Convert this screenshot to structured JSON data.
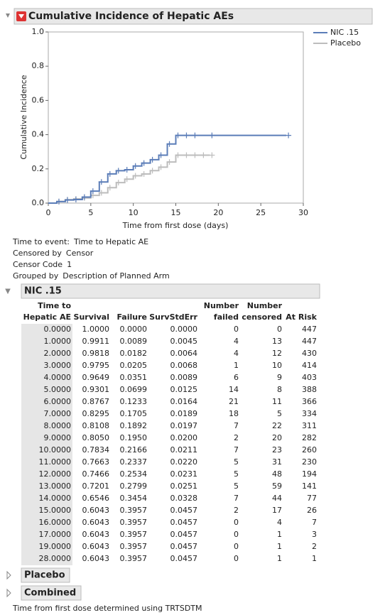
{
  "report_title": "Cumulative Incidence of Hepatic AEs",
  "chart_data": {
    "type": "line",
    "y_label": "Cumulative Incidence",
    "x_label": "Time from first dose (days)",
    "xlim": [
      0,
      30
    ],
    "xticks": [
      0,
      5,
      10,
      15,
      20,
      25,
      30
    ],
    "ylim": [
      0,
      1
    ],
    "yticks": [
      {
        "value": 0,
        "label": "0.0"
      },
      {
        "value": 0.2,
        "label": "0.2"
      },
      {
        "value": 0.4,
        "label": "0.4"
      },
      {
        "value": 0.6,
        "label": "0.6"
      },
      {
        "value": 0.8,
        "label": "0.8"
      },
      {
        "value": 1,
        "label": "1.0"
      }
    ],
    "legend": "right",
    "series": [
      {
        "name": "NIC .15",
        "color": "#5b7db8",
        "x": [
          0,
          1,
          2,
          3,
          4,
          5,
          6,
          7,
          8,
          9,
          10,
          11,
          12,
          13,
          14,
          15,
          16,
          17,
          19,
          28
        ],
        "values": [
          0,
          0.0089,
          0.0182,
          0.0205,
          0.0351,
          0.0699,
          0.1233,
          0.1705,
          0.1892,
          0.195,
          0.2166,
          0.2337,
          0.2534,
          0.2799,
          0.3454,
          0.3957,
          0.3957,
          0.3957,
          0.3957,
          0.3957
        ]
      },
      {
        "name": "Placebo",
        "color": "#bdbdbd",
        "x": [
          0,
          1,
          2,
          3,
          4,
          5,
          6,
          7,
          8,
          9,
          10,
          11,
          12,
          13,
          14,
          15,
          16,
          17,
          18,
          19
        ],
        "values": [
          0,
          0.01,
          0.02,
          0.025,
          0.03,
          0.045,
          0.06,
          0.09,
          0.12,
          0.14,
          0.16,
          0.17,
          0.19,
          0.21,
          0.24,
          0.28,
          0.28,
          0.28,
          0.28,
          0.28
        ]
      }
    ]
  },
  "info": [
    {
      "label": "Time to event:",
      "value": "Time to Hepatic AE"
    },
    {
      "label": "Censored by",
      "value": "Censor"
    },
    {
      "label": "Censor Code",
      "value": "1"
    },
    {
      "label": "Grouped by",
      "value": "Description of Planned Arm"
    }
  ],
  "sections": [
    {
      "title": "NIC .15",
      "table": {
        "columns": [
          [
            "Time to",
            "Hepatic AE"
          ],
          [
            "Survival"
          ],
          [
            "Failure"
          ],
          [
            "SurvStdErr"
          ],
          [
            "Number",
            "failed"
          ],
          [
            "Number",
            "censored"
          ],
          [
            "At Risk"
          ]
        ],
        "rows": [
          [
            "0.0000",
            "1.0000",
            "0.0000",
            "0.0000",
            "0",
            "0",
            "447"
          ],
          [
            "1.0000",
            "0.9911",
            "0.0089",
            "0.0045",
            "4",
            "13",
            "447"
          ],
          [
            "2.0000",
            "0.9818",
            "0.0182",
            "0.0064",
            "4",
            "12",
            "430"
          ],
          [
            "3.0000",
            "0.9795",
            "0.0205",
            "0.0068",
            "1",
            "10",
            "414"
          ],
          [
            "4.0000",
            "0.9649",
            "0.0351",
            "0.0089",
            "6",
            "9",
            "403"
          ],
          [
            "5.0000",
            "0.9301",
            "0.0699",
            "0.0125",
            "14",
            "8",
            "388"
          ],
          [
            "6.0000",
            "0.8767",
            "0.1233",
            "0.0164",
            "21",
            "11",
            "366"
          ],
          [
            "7.0000",
            "0.8295",
            "0.1705",
            "0.0189",
            "18",
            "5",
            "334"
          ],
          [
            "8.0000",
            "0.8108",
            "0.1892",
            "0.0197",
            "7",
            "22",
            "311"
          ],
          [
            "9.0000",
            "0.8050",
            "0.1950",
            "0.0200",
            "2",
            "20",
            "282"
          ],
          [
            "10.0000",
            "0.7834",
            "0.2166",
            "0.0211",
            "7",
            "23",
            "260"
          ],
          [
            "11.0000",
            "0.7663",
            "0.2337",
            "0.0220",
            "5",
            "31",
            "230"
          ],
          [
            "12.0000",
            "0.7466",
            "0.2534",
            "0.0231",
            "5",
            "48",
            "194"
          ],
          [
            "13.0000",
            "0.7201",
            "0.2799",
            "0.0251",
            "5",
            "59",
            "141"
          ],
          [
            "14.0000",
            "0.6546",
            "0.3454",
            "0.0328",
            "7",
            "44",
            "77"
          ],
          [
            "15.0000",
            "0.6043",
            "0.3957",
            "0.0457",
            "2",
            "17",
            "26"
          ],
          [
            "16.0000",
            "0.6043",
            "0.3957",
            "0.0457",
            "0",
            "4",
            "7"
          ],
          [
            "17.0000",
            "0.6043",
            "0.3957",
            "0.0457",
            "0",
            "1",
            "3"
          ],
          [
            "19.0000",
            "0.6043",
            "0.3957",
            "0.0457",
            "0",
            "1",
            "2"
          ],
          [
            "28.0000",
            "0.6043",
            "0.3957",
            "0.0457",
            "0",
            "1",
            "1"
          ]
        ]
      }
    },
    {
      "title": "Placebo"
    },
    {
      "title": "Combined"
    }
  ],
  "footnote": "Time from first dose determined using TRTSDTM"
}
